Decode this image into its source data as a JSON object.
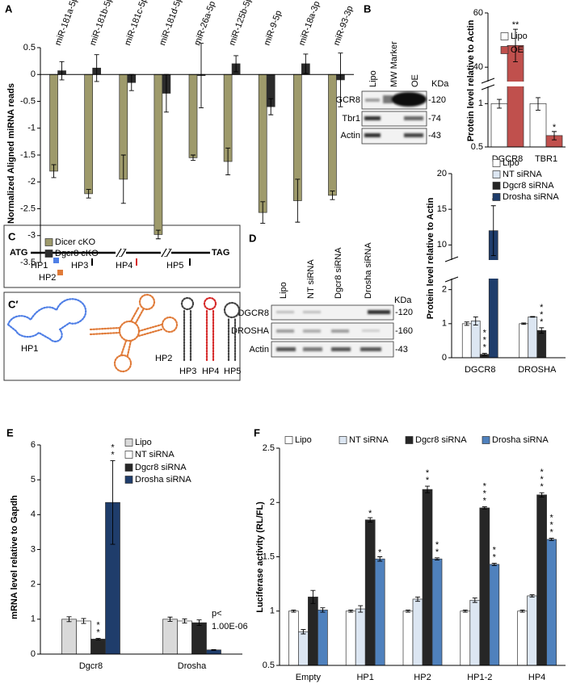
{
  "chart_data": [
    {
      "panel": "A",
      "type": "bar",
      "y_label": "Normalized Aligned miRNA reads",
      "categories": [
        "miR-181a-5p",
        "miR-181b-5p",
        "miR-181c-5p",
        "miR-181d-5p",
        "miR-26a-5p",
        "miR-125b-5p",
        "miR-9-5p",
        "miR-18a-3p",
        "miR-93-3p"
      ],
      "series": [
        {
          "name": "Dicer cKO",
          "color": "#9e9a6b",
          "values": [
            -1.8,
            -2.22,
            -1.95,
            -2.98,
            -1.55,
            -1.62,
            -2.57,
            -2.35,
            -2.25
          ],
          "errors": [
            0.12,
            0.08,
            0.45,
            0.08,
            0.05,
            0.25,
            0.2,
            0.4,
            0.08
          ]
        },
        {
          "name": "Dgcr8 cKO",
          "color": "#2b2b2b",
          "values": [
            0.07,
            0.12,
            -0.15,
            -0.35,
            -0.02,
            0.2,
            -0.6,
            0.2,
            -0.1
          ],
          "errors": [
            0.17,
            0.25,
            0.15,
            0.35,
            0.6,
            0.15,
            0.15,
            0.18,
            0.5
          ]
        }
      ],
      "ylim": [
        -3.5,
        0.5
      ],
      "yticks": [
        0.5,
        0,
        -0.5,
        -1,
        -1.5,
        -2,
        -2.5,
        -3,
        -3.5
      ]
    },
    {
      "panel": "B",
      "type": "bar",
      "y_label": "Protein level relative to Actin",
      "categories": [
        "DGCR8",
        "TBR1"
      ],
      "series": [
        {
          "name": "Lipo",
          "color": "#ffffff",
          "values": [
            1,
            1
          ],
          "errors": [
            0.07,
            0.1
          ]
        },
        {
          "name": "OE",
          "color": "#c0504d",
          "values": [
            48,
            0.6
          ],
          "errors": [
            6,
            0.04
          ],
          "significance": [
            "**",
            "*"
          ]
        }
      ],
      "ylim": [
        0.5,
        60
      ],
      "axis_break": [
        1.3,
        35
      ],
      "lower_scale": "log",
      "yticks": [
        0.5,
        1,
        40,
        60
      ]
    },
    {
      "panel": "D",
      "type": "bar",
      "y_label": "Protein level relative to Actin",
      "stars_vertical": true,
      "categories": [
        "DGCR8",
        "DROSHA"
      ],
      "series": [
        {
          "name": "Lipo",
          "color": "#ffffff",
          "values": [
            1,
            1
          ],
          "errors": [
            0.05,
            0.02
          ]
        },
        {
          "name": "NT siRNA",
          "color": "#dce6f2",
          "values": [
            1.08,
            1.2
          ],
          "errors": [
            0.12,
            0.01
          ]
        },
        {
          "name": "Dgcr8 siRNA",
          "color": "#262626",
          "values": [
            0.1,
            0.8
          ],
          "errors": [
            0.03,
            0.08
          ],
          "significance": [
            "***",
            "***"
          ]
        },
        {
          "name": "Drosha siRNA",
          "color": "#1f3d6b",
          "values": [
            12,
            null
          ],
          "errors": [
            3.5,
            null
          ],
          "significance": [
            "*",
            null
          ]
        }
      ],
      "ylim": [
        0,
        20
      ],
      "axis_break": [
        2.3,
        8
      ],
      "yticks": [
        0,
        1,
        2,
        10,
        15,
        20
      ]
    },
    {
      "panel": "E",
      "type": "bar",
      "y_label": "mRNA level relative to Gapdh",
      "stars_vertical": true,
      "categories": [
        "Dgcr8",
        "Drosha"
      ],
      "series": [
        {
          "name": "Lipo",
          "color": "#d9d9d9",
          "values": [
            1,
            1
          ],
          "errors": [
            0.07,
            0.06
          ]
        },
        {
          "name": "NT siRNA",
          "color": "#ffffff",
          "values": [
            0.95,
            0.95
          ],
          "errors": [
            0.07,
            0.06
          ]
        },
        {
          "name": "Dgcr8 siRNA",
          "color": "#262626",
          "values": [
            0.43,
            0.9
          ],
          "errors": [
            0.02,
            0.08
          ],
          "significance": [
            "**",
            null
          ]
        },
        {
          "name": "Drosha siRNA",
          "color": "#1f3d6b",
          "values": [
            4.35,
            0.12
          ],
          "errors": [
            1.2,
            0.01
          ],
          "significance": [
            "**",
            null
          ]
        }
      ],
      "ylim": [
        0,
        6
      ],
      "yticks": [
        0,
        1,
        2,
        3,
        4,
        5,
        6
      ],
      "note": [
        "p<",
        "1.00E-06"
      ]
    },
    {
      "panel": "F",
      "type": "bar",
      "y_label": "Luciferase activity (RL/FL)",
      "stars_vertical": true,
      "categories": [
        "Empty",
        "HP1",
        "HP2",
        "HP1-2",
        "HP4"
      ],
      "series": [
        {
          "name": "Lipo",
          "color": "#ffffff",
          "values": [
            1,
            1,
            1,
            1,
            1
          ],
          "errors": [
            0.01,
            0.01,
            0.01,
            0.01,
            0.01
          ]
        },
        {
          "name": "NT siRNA",
          "color": "#dce6f2",
          "values": [
            0.81,
            1.02,
            1.11,
            1.1,
            1.14
          ],
          "errors": [
            0.02,
            0.03,
            0.02,
            0.02,
            0.01
          ]
        },
        {
          "name": "Dgcr8 siRNA",
          "color": "#262626",
          "values": [
            1.13,
            1.84,
            2.12,
            1.95,
            2.07
          ],
          "errors": [
            0.06,
            0.02,
            0.03,
            0.01,
            0.02
          ],
          "significance": [
            null,
            "*",
            "**",
            "***",
            "***"
          ]
        },
        {
          "name": "Drosha siRNA",
          "color": "#4f81bd",
          "values": [
            1.01,
            1.48,
            1.48,
            1.43,
            1.66
          ],
          "errors": [
            0.02,
            0.02,
            0.01,
            0.01,
            0.01
          ],
          "significance": [
            null,
            "*",
            "**",
            "**",
            "***"
          ]
        }
      ],
      "ylim": [
        0.5,
        2.5
      ],
      "yticks": [
        0.5,
        1,
        1.5,
        2,
        2.5
      ]
    }
  ],
  "blot_B": {
    "lanes": [
      "Lipo",
      "MW Marker",
      "OE"
    ],
    "rows": [
      "DGCR8",
      "Tbr1",
      "Actin"
    ],
    "markers": [
      "-120",
      "-74",
      "-43"
    ],
    "unit": "KDa"
  },
  "blot_D": {
    "lanes": [
      "Lipo",
      "NT siRNA",
      "Dgcr8 siRNA",
      "Drosha siRNA"
    ],
    "rows": [
      "DGCR8",
      "DROSHA",
      "Actin"
    ],
    "markers": [
      "-120",
      "-160",
      "-43"
    ],
    "unit": "KDa"
  },
  "gene_diagram": {
    "panel": "C",
    "start": "ATG",
    "end": "TAG",
    "hairpins": [
      "HP1",
      "HP2",
      "HP3",
      "HP4",
      "HP5"
    ]
  },
  "structures": {
    "panel": "C′",
    "labels": [
      "HP1",
      "HP2",
      "HP3",
      "HP4",
      "HP5"
    ]
  }
}
